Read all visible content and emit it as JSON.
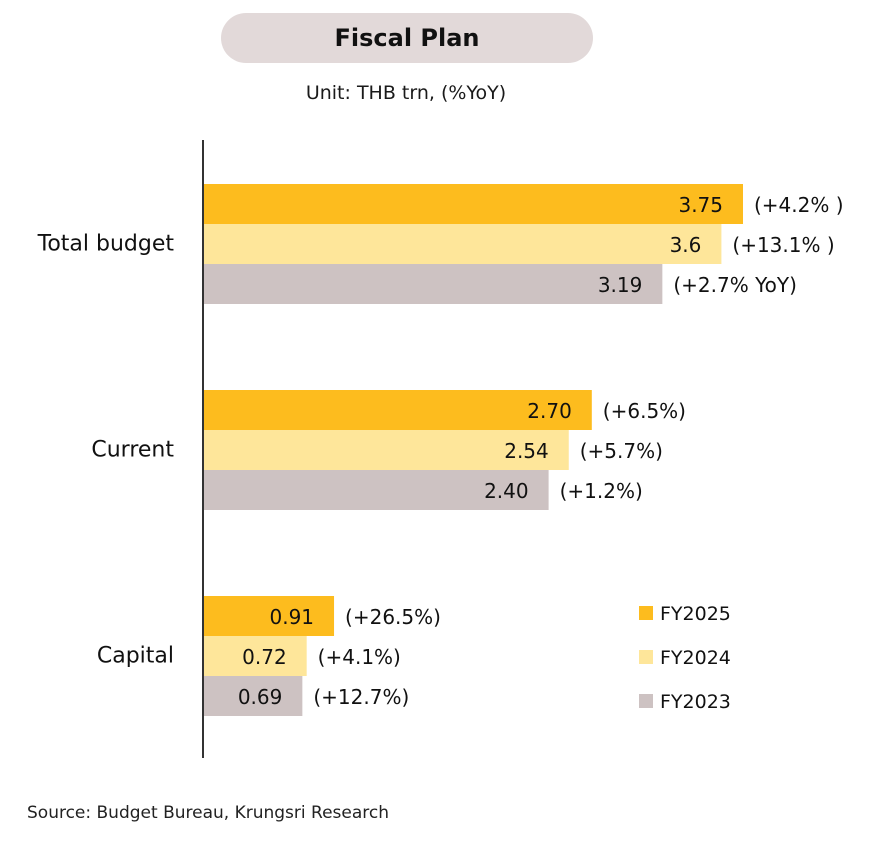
{
  "title": "Fiscal Plan",
  "unit": "Unit: THB trn, (%YoY)",
  "source": "Source: Budget Bureau, Krungsri Research",
  "colors": {
    "title_bg": "#e2d9d9",
    "axis": "#333333"
  },
  "chart_data": {
    "type": "bar",
    "orientation": "horizontal",
    "categories": [
      "Total budget",
      "Current",
      "Capital"
    ],
    "series": [
      {
        "name": "FY2025",
        "color": "#fdbc1e",
        "values": [
          3.75,
          2.7,
          0.91
        ],
        "value_labels": [
          "3.75",
          "2.70",
          "0.91"
        ],
        "annotations": [
          "(+4.2% )",
          "(+6.5%)",
          "(+26.5%)"
        ]
      },
      {
        "name": "FY2024",
        "color": "#fee69a",
        "values": [
          3.6,
          2.54,
          0.72
        ],
        "value_labels": [
          "3.6",
          "2.54",
          "0.72"
        ],
        "annotations": [
          "(+13.1% )",
          "(+5.7%)",
          "(+4.1%)"
        ]
      },
      {
        "name": "FY2023",
        "color": "#cdc2c2",
        "values": [
          3.19,
          2.4,
          0.69
        ],
        "value_labels": [
          "3.19",
          "2.40",
          "0.69"
        ],
        "annotations": [
          "(+2.7% YoY)",
          "(+1.2%)",
          "(+12.7%)"
        ]
      }
    ],
    "xlim": [
      0,
      3.75
    ],
    "grid": false,
    "legend_position": "bottom-right"
  }
}
